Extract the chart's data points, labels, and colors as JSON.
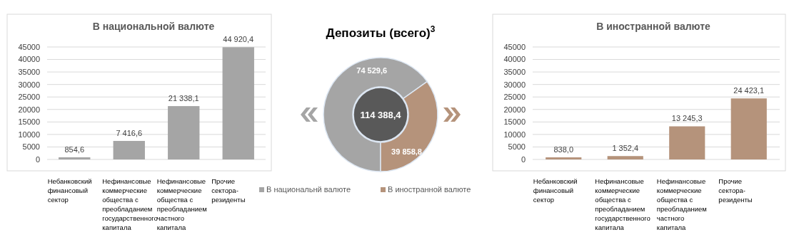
{
  "chart_data": [
    {
      "type": "bar",
      "title": "В национальной валюте",
      "categories": [
        "Небанковский финансовый сектор",
        "Нефинансовые коммерческие общества с преобладанием государственного капитала",
        "Нефинансовые коммерческие общества с преобладанием частного капитала",
        "Прочие сектора-резиденты"
      ],
      "values": [
        854.6,
        7416.6,
        21338.1,
        44920.4
      ],
      "color": "#a5a5a5",
      "value_labels": [
        "854,6",
        "7 416,6",
        "21 338,1",
        "44 920,4"
      ],
      "ylim": [
        0,
        45000
      ],
      "yticks": [
        0,
        5000,
        10000,
        15000,
        20000,
        25000,
        30000,
        35000,
        40000,
        45000
      ],
      "grid": "y"
    },
    {
      "type": "donut",
      "title": "Депозиты (всего)$^{3}$",
      "categories": [
        "В национальнй валюте",
        "В иностранной валюте"
      ],
      "values": [
        74529.6,
        39858.8
      ],
      "colors": [
        "#a5a5a5",
        "#b5937b"
      ],
      "value_labels": [
        "74 529,6",
        "39 858,8"
      ],
      "annotations": [
        "114 388,4"
      ],
      "legend": "bottom"
    },
    {
      "type": "bar",
      "title": "В иностранной валюте",
      "categories": [
        "Небанковский финансовый сектор",
        "Нефинансовые коммерческие общества с преобладанием государственного капитала",
        "Нефинансовые коммерческие общества с преобладанием частного капитала",
        "Прочие сектора-резиденты"
      ],
      "values": [
        838.0,
        1352.4,
        13245.3,
        24423.1
      ],
      "color": "#b5937b",
      "value_labels": [
        "838,0",
        "1 352,4",
        "13 245,3",
        "24 423,1"
      ],
      "ylim": [
        0,
        45000
      ],
      "yticks": [
        0,
        5000,
        10000,
        15000,
        20000,
        25000,
        30000,
        35000,
        40000,
        45000
      ],
      "grid": "y"
    }
  ]
}
